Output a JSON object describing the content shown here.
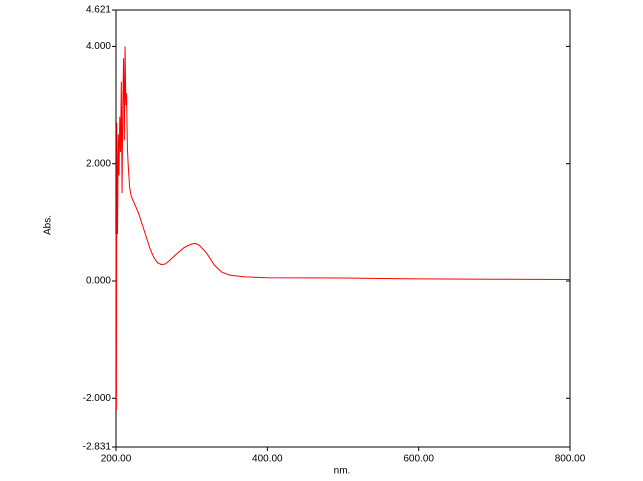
{
  "chart_data": {
    "type": "line",
    "x_label": "nm.",
    "y_label": "Abs.",
    "x": [
      200,
      200.5,
      201,
      202,
      203,
      204,
      205,
      206,
      207,
      208,
      209,
      210,
      211,
      212,
      213,
      214,
      215,
      216,
      218,
      220,
      225,
      230,
      235,
      240,
      245,
      250,
      255,
      260,
      265,
      270,
      280,
      290,
      300,
      305,
      310,
      320,
      330,
      340,
      350,
      370,
      400,
      500,
      600,
      700,
      800
    ],
    "series": [
      {
        "name": "Abs.",
        "color": "#ff0000",
        "values": [
          0.8,
          -2.2,
          2.7,
          0.8,
          2.5,
          1.8,
          2.8,
          2.2,
          3.4,
          1.5,
          3.0,
          3.8,
          2.4,
          4.0,
          3.0,
          3.2,
          2.3,
          2.0,
          1.6,
          1.45,
          1.3,
          1.15,
          0.95,
          0.75,
          0.55,
          0.4,
          0.31,
          0.28,
          0.29,
          0.34,
          0.46,
          0.57,
          0.63,
          0.64,
          0.61,
          0.47,
          0.27,
          0.15,
          0.1,
          0.07,
          0.055,
          0.05,
          0.035,
          0.03,
          0.025
        ]
      }
    ],
    "xlim": [
      200,
      800
    ],
    "xticks": [
      {
        "value": 200,
        "label": "200.00"
      },
      {
        "value": 400,
        "label": "400.00"
      },
      {
        "value": 600,
        "label": "600.00"
      },
      {
        "value": 800,
        "label": "800.00"
      }
    ],
    "ylim": [
      -2.831,
      4.621
    ],
    "yticks": [
      {
        "value": -2.831,
        "label": "-2.831"
      },
      {
        "value": -2,
        "label": "-2.000"
      },
      {
        "value": 0,
        "label": "0.000"
      },
      {
        "value": 2,
        "label": "2.000"
      },
      {
        "value": 4,
        "label": "4.000"
      },
      {
        "value": 4.621,
        "label": "4.621"
      }
    ],
    "grid": false
  }
}
